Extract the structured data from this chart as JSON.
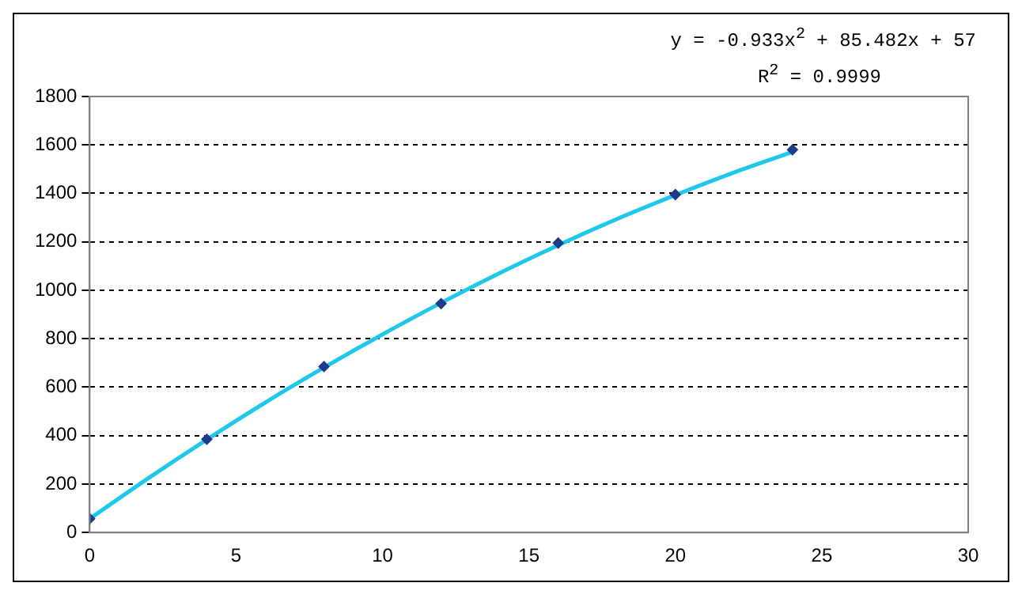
{
  "chart_data": {
    "type": "scatter",
    "series": [
      {
        "type": "scatter",
        "color": "#1f3a8a",
        "marker": "diamond",
        "x": [
          0,
          4,
          8,
          12,
          16,
          20,
          24
        ],
        "values": [
          57,
          385,
          685,
          945,
          1195,
          1395,
          1580
        ]
      },
      {
        "type": "line",
        "color": "#1ec8e8",
        "marker": "none",
        "x": [
          0,
          2,
          4,
          6,
          8,
          10,
          12,
          14,
          16,
          18,
          20,
          22,
          24
        ],
        "values": [
          57,
          224,
          384,
          537,
          681,
          818,
          948,
          1071,
          1186,
          1294,
          1393,
          1486,
          1571
        ]
      }
    ],
    "xlim": [
      0,
      30
    ],
    "xticks": [
      0,
      5,
      10,
      15,
      20,
      25,
      30
    ],
    "ylim": [
      0,
      1800
    ],
    "yticks": [
      0,
      200,
      400,
      600,
      800,
      1000,
      1200,
      1400,
      1600,
      1800
    ],
    "grid": "y",
    "legend": false,
    "annotations": [
      "y = -0.933x$^{2}$ + 85.482x + 57",
      "R$^{2}$ = 0.9999"
    ]
  }
}
